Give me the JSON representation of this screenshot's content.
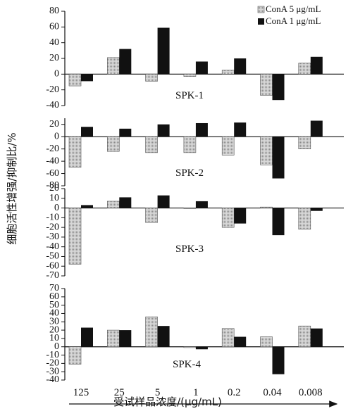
{
  "chart_data": {
    "type": "bar",
    "ylabel": "细胞活性增强/抑制比/%",
    "xlabel": "受试样品浓度/(μg/mL)",
    "categories": [
      "125",
      "25",
      "5",
      "1",
      "0.2",
      "0.04",
      "0.008"
    ],
    "legend": [
      {
        "name": "ConA 5 μg/mL",
        "color": "#c8c8c8"
      },
      {
        "name": "ConA 1 μg/mL",
        "color": "#111111"
      }
    ],
    "legend_position": "top-right",
    "grid": false,
    "panels": [
      {
        "label": "SPK-1",
        "ylim": [
          -40,
          80
        ],
        "yticks": [
          -40,
          -20,
          0,
          20,
          40,
          60,
          80
        ],
        "series": [
          {
            "name": "ConA 5 μg/mL",
            "values": [
              -15,
              21,
              -9,
              -3,
              5,
              -27,
              14
            ]
          },
          {
            "name": "ConA 1 μg/mL",
            "values": [
              -9,
              32,
              59,
              16,
              20,
              -33,
              22
            ]
          }
        ]
      },
      {
        "label": "SPK-2",
        "ylim": [
          -80,
          30
        ],
        "yticks": [
          -80,
          -60,
          -40,
          -20,
          0,
          20
        ],
        "series": [
          {
            "name": "ConA 5 μg/mL",
            "values": [
              -50,
              -24,
              -26,
              -26,
              -30,
              -46,
              -20
            ]
          },
          {
            "name": "ConA 1 μg/mL",
            "values": [
              16,
              13,
              20,
              22,
              23,
              -68,
              26
            ]
          }
        ]
      },
      {
        "label": "SPK-3",
        "ylim": [
          -70,
          20
        ],
        "yticks": [
          -70,
          -60,
          -50,
          -40,
          -30,
          -20,
          -10,
          0,
          10,
          20
        ],
        "series": [
          {
            "name": "ConA 5 μg/mL",
            "values": [
              -58,
              7,
              -15,
              0,
              -20,
              1,
              -22
            ]
          },
          {
            "name": "ConA 1 μg/mL",
            "values": [
              3,
              11,
              13,
              7,
              -16,
              -28,
              -3
            ]
          }
        ]
      },
      {
        "label": "SPK-4",
        "ylim": [
          -40,
          70
        ],
        "yticks": [
          -40,
          -30,
          -20,
          -10,
          0,
          10,
          20,
          30,
          40,
          50,
          60,
          70
        ],
        "series": [
          {
            "name": "ConA 5 μg/mL",
            "values": [
              -21,
              20,
              36,
              -1,
              22,
              12,
              25
            ]
          },
          {
            "name": "ConA 1 μg/mL",
            "values": [
              23,
              20,
              25,
              -3,
              12,
              -33,
              22
            ]
          }
        ]
      }
    ]
  }
}
